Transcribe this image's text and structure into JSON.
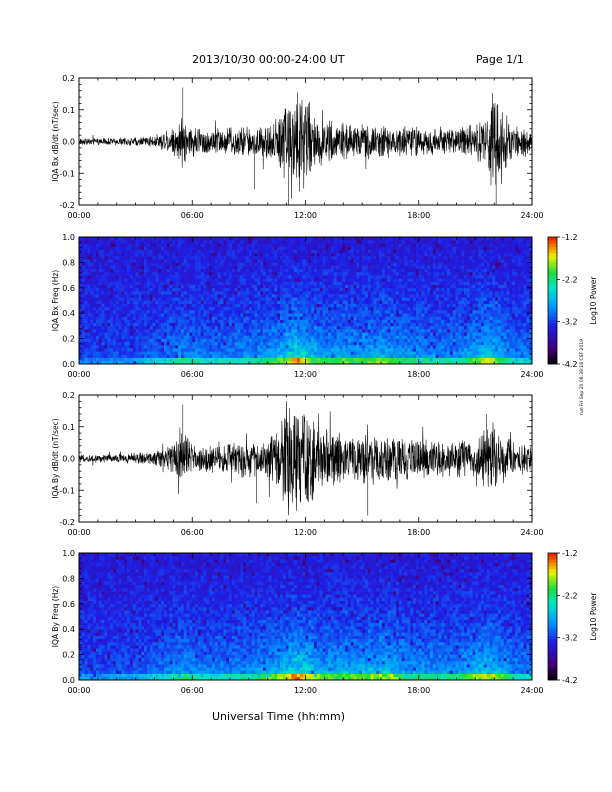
{
  "header": {
    "title": "2013/10/30  00:00-24:00 UT",
    "page": "Page 1/1"
  },
  "footer": {
    "xlabel": "Universal Time (hh:mm)",
    "side_stamp": "run Fri Sep 20 08:39:18 CST 2019"
  },
  "chart_data": [
    {
      "type": "line",
      "panel": "IQA Bx dB/dt",
      "ylabel": "IQA Bx dB/dt (nT/sec)",
      "xlim": [
        0,
        24
      ],
      "ylim": [
        -0.2,
        0.2
      ],
      "yticks": [
        -0.2,
        -0.1,
        0.0,
        0.1,
        0.2
      ],
      "ytick_labels": [
        "-0.2",
        "-0.1",
        "0.0",
        "0.1",
        "0.2"
      ],
      "xtick_labels": [
        "00:00",
        "06:00",
        "12:00",
        "18:00",
        "24:00"
      ],
      "series_color": "#000000",
      "envelope_x": [
        0,
        1,
        2,
        3,
        4,
        5,
        5.5,
        6,
        7,
        8,
        9,
        10,
        10.5,
        11,
        11.5,
        12,
        12.5,
        13,
        14,
        15,
        16,
        17,
        18,
        19,
        20,
        21,
        21.5,
        22,
        22.5,
        23,
        24
      ],
      "envelope_amp": [
        0.012,
        0.012,
        0.013,
        0.015,
        0.02,
        0.05,
        0.09,
        0.05,
        0.05,
        0.05,
        0.055,
        0.06,
        0.09,
        0.16,
        0.2,
        0.17,
        0.09,
        0.08,
        0.06,
        0.06,
        0.055,
        0.055,
        0.05,
        0.05,
        0.05,
        0.055,
        0.1,
        0.2,
        0.1,
        0.05,
        0.05
      ],
      "spikes": [
        {
          "x": 5.5,
          "y": 0.17
        },
        {
          "x": 9.3,
          "y": -0.15
        },
        {
          "x": 11.1,
          "y": -0.2
        },
        {
          "x": 22.1,
          "y": -0.2
        }
      ]
    },
    {
      "type": "heatmap",
      "panel": "IQA Bx Freq",
      "ylabel": "IQA Bx Freq (Hz)",
      "xlim": [
        0,
        24
      ],
      "ylim": [
        0.0,
        1.0
      ],
      "yticks": [
        0.0,
        0.2,
        0.4,
        0.6,
        0.8,
        1.0
      ],
      "ytick_labels": [
        "0.0",
        "0.2",
        "0.4",
        "0.6",
        "0.8",
        "1.0"
      ],
      "xtick_labels": [
        "00:00",
        "06:00",
        "12:00",
        "18:00",
        "24:00"
      ],
      "colorbar": {
        "label": "Log10 Power",
        "min": -4.2,
        "max": -1.2,
        "ticks": [
          -4.2,
          -3.2,
          -2.2,
          -1.2
        ],
        "tick_labels": [
          "-4.2",
          "-3.2",
          "-2.2",
          "-1.2"
        ]
      },
      "activity_x": [
        0,
        3,
        5.5,
        7,
        9,
        10.5,
        11.5,
        12,
        13,
        15,
        16.5,
        17,
        18,
        20,
        21.5,
        22,
        23,
        24
      ],
      "activity": [
        0.05,
        0.1,
        0.45,
        0.3,
        0.4,
        0.6,
        1.0,
        0.8,
        0.55,
        0.6,
        0.65,
        0.5,
        0.45,
        0.4,
        0.75,
        0.7,
        0.35,
        0.3
      ]
    },
    {
      "type": "line",
      "panel": "IQA By dB/dt",
      "ylabel": "IQA By dB/dt (nT/sec)",
      "xlim": [
        0,
        24
      ],
      "ylim": [
        -0.2,
        0.2
      ],
      "yticks": [
        -0.2,
        -0.1,
        0.0,
        0.1,
        0.2
      ],
      "ytick_labels": [
        "-0.2",
        "-0.1",
        "0.0",
        "0.1",
        "0.2"
      ],
      "xtick_labels": [
        "00:00",
        "06:00",
        "12:00",
        "18:00",
        "24:00"
      ],
      "series_color": "#000000",
      "envelope_x": [
        0,
        1,
        2,
        3,
        4,
        5,
        5.5,
        6,
        7,
        8,
        9,
        10,
        10.5,
        11,
        11.5,
        12,
        12.5,
        13,
        14,
        15,
        16,
        17,
        18,
        19,
        20,
        21,
        21.5,
        22,
        22.5,
        23,
        24
      ],
      "envelope_amp": [
        0.012,
        0.014,
        0.015,
        0.02,
        0.025,
        0.05,
        0.1,
        0.05,
        0.05,
        0.055,
        0.06,
        0.07,
        0.1,
        0.2,
        0.2,
        0.2,
        0.12,
        0.1,
        0.08,
        0.09,
        0.08,
        0.08,
        0.07,
        0.065,
        0.07,
        0.07,
        0.1,
        0.11,
        0.08,
        0.06,
        0.05
      ],
      "spikes": [
        {
          "x": 5.5,
          "y": 0.17
        },
        {
          "x": 9.4,
          "y": -0.14
        },
        {
          "x": 15.3,
          "y": -0.18
        },
        {
          "x": 21.6,
          "y": 0.14
        }
      ]
    },
    {
      "type": "heatmap",
      "panel": "IQA By Freq",
      "ylabel": "IQA By Freq (Hz)",
      "xlim": [
        0,
        24
      ],
      "ylim": [
        0.0,
        1.0
      ],
      "yticks": [
        0.0,
        0.2,
        0.4,
        0.6,
        0.8,
        1.0
      ],
      "ytick_labels": [
        "0.0",
        "0.2",
        "0.4",
        "0.6",
        "0.8",
        "1.0"
      ],
      "xtick_labels": [
        "00:00",
        "06:00",
        "12:00",
        "18:00",
        "24:00"
      ],
      "colorbar": {
        "label": "Log10 Power",
        "min": -4.2,
        "max": -1.2,
        "ticks": [
          -4.2,
          -3.2,
          -2.2,
          -1.2
        ],
        "tick_labels": [
          "-4.2",
          "-3.2",
          "-2.2",
          "-1.2"
        ]
      },
      "activity_x": [
        0,
        3,
        5.5,
        7,
        9,
        10.5,
        11.5,
        12,
        13,
        15,
        16.5,
        17,
        18,
        20,
        21.5,
        22,
        23,
        24
      ],
      "activity": [
        0.08,
        0.12,
        0.5,
        0.35,
        0.45,
        0.65,
        1.0,
        0.85,
        0.6,
        0.65,
        0.75,
        0.55,
        0.5,
        0.45,
        0.8,
        0.75,
        0.4,
        0.35
      ]
    }
  ]
}
